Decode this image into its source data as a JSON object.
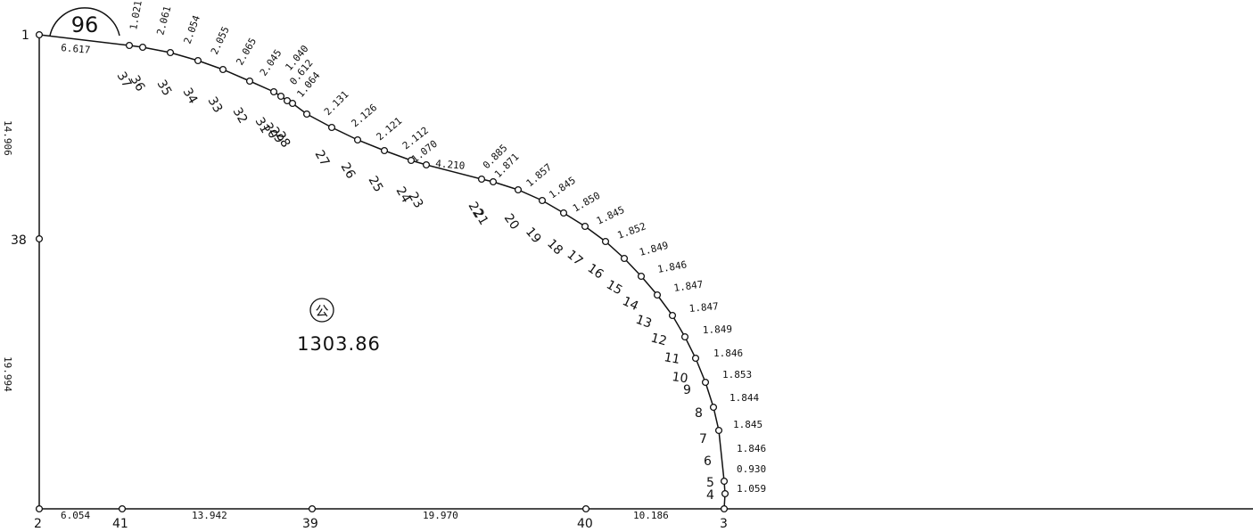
{
  "parcel": {
    "lot_number": "96",
    "area_mark": "公",
    "area": "1303.86"
  },
  "point_labels": {
    "p1": "1",
    "p2": "2",
    "p3": "3",
    "p4": "4",
    "p5": "5",
    "p6": "6",
    "p7": "7",
    "p8": "8",
    "p9": "9",
    "p10": "10",
    "p11": "11",
    "p12": "12",
    "p13": "13",
    "p14": "14",
    "p15": "15",
    "p16": "16",
    "p17": "17",
    "p18": "18",
    "p19": "19",
    "p20": "20",
    "p21": "21",
    "p22": "22",
    "p23": "23",
    "p24": "24",
    "p25": "25",
    "p26": "26",
    "p27": "27",
    "p28": "28",
    "p29": "29",
    "p30": "30",
    "p31": "31",
    "p32": "32",
    "p33": "33",
    "p34": "34",
    "p35": "35",
    "p36": "36",
    "p37": "37",
    "p38": "38",
    "p39": "39",
    "p40": "40",
    "p41": "41"
  },
  "distances": {
    "d1_37": "6.617",
    "d37_36": "1.021",
    "d36_35": "2.061",
    "d35_34": "2.054",
    "d34_33": "2.055",
    "d33_32": "2.065",
    "d32_31": "2.045",
    "d31_30": "1.040",
    "d30_29": "0.612",
    "d29_28": "1.064",
    "d28_27": "2.131",
    "d27_26": "2.126",
    "d26_25": "2.121",
    "d25_24": "2.112",
    "d24_23": "1.070",
    "d23_22": "4.210",
    "d22_21": "0.885",
    "d21_20": "1.871",
    "d20_19": "1.857",
    "d19_18": "1.845",
    "d18_17": "1.850",
    "d17_16": "1.845",
    "d16_15": "1.852",
    "d15_14": "1.849",
    "d14_13": "1.846",
    "d13_12": "1.847",
    "d12_11": "1.847",
    "d11_10": "1.849",
    "d10_9": "1.846",
    "d9_8": "1.853",
    "d8_7": "1.844",
    "d7_6": "1.845",
    "d6_5": "1.846",
    "d5_4": "0.930",
    "d4_3": "1.059",
    "d2_41": "6.054",
    "d41_39": "13.942",
    "d39_40": "19.970",
    "d40_3": "10.186",
    "d1_38": "14.906",
    "d38_2": "19.994"
  }
}
